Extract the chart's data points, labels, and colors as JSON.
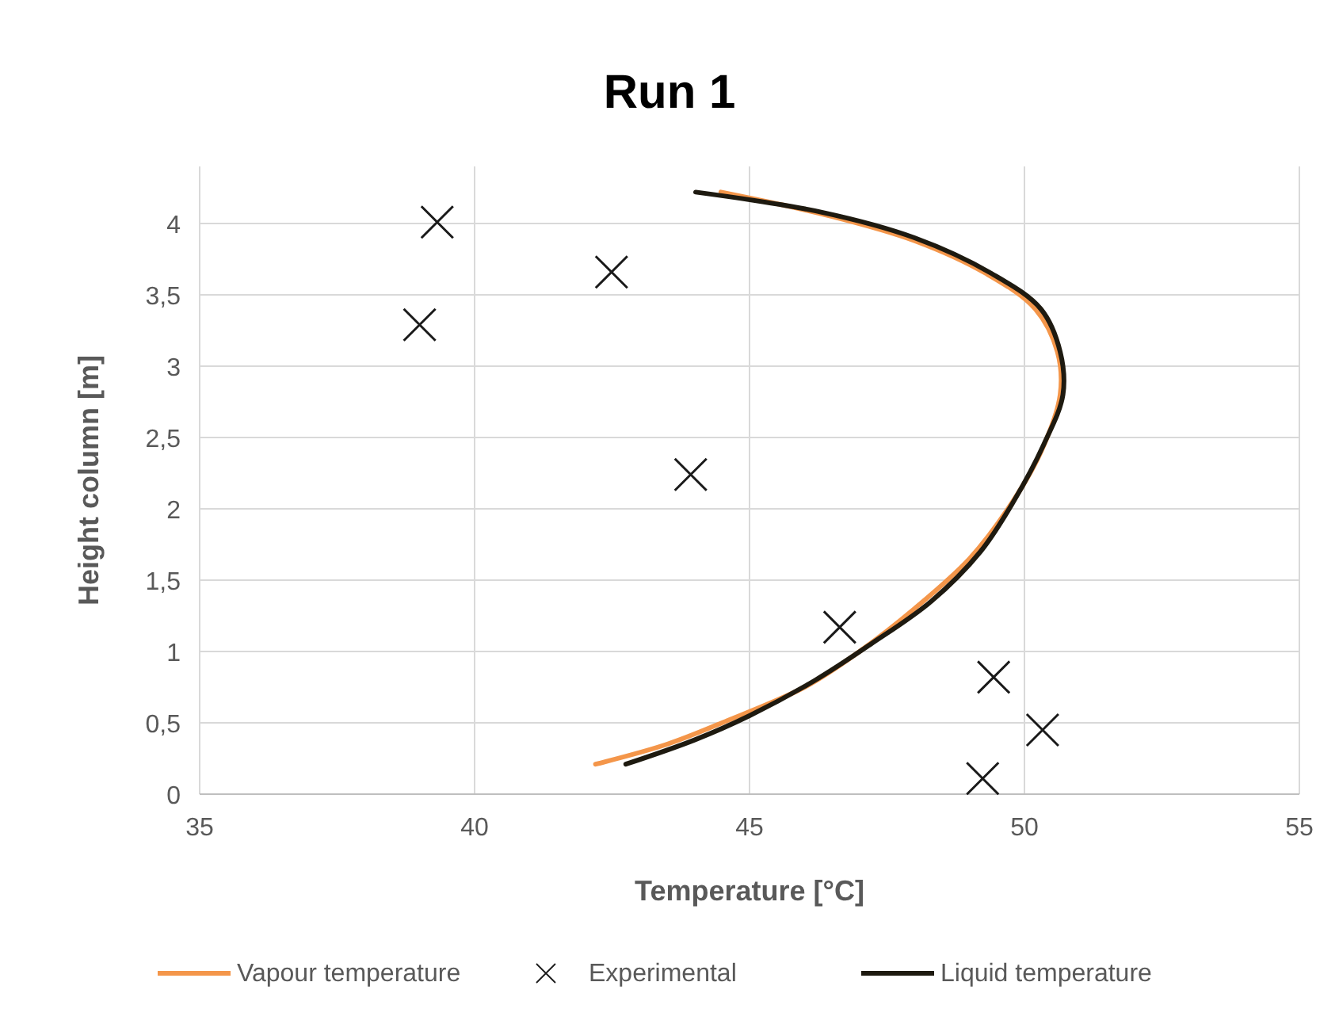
{
  "chart_data": {
    "type": "line",
    "title": "Run 1",
    "xlabel": "Temperature [°C]",
    "ylabel": "Height column [m]",
    "xlim": [
      35,
      55
    ],
    "xticks": [
      35,
      40,
      45,
      50,
      55
    ],
    "ylim": [
      0,
      4.4
    ],
    "yticks": [
      0,
      {
        "value": 0.5,
        "label": "0,5"
      },
      1,
      {
        "value": 1.5,
        "label": "1,5"
      },
      2,
      {
        "value": 2.5,
        "label": "2,5"
      },
      3,
      {
        "value": 3.5,
        "label": "3,5"
      },
      4
    ],
    "grid": true,
    "legend": "bottom",
    "series": [
      {
        "name": "Vapour temperature",
        "color": "#f4964a",
        "marker": "none",
        "x": [
          42.2,
          43.5,
          44.5,
          46,
          47,
          48,
          49,
          49.7,
          50.3,
          50.65,
          50.6,
          50.2,
          49.3,
          48,
          46.5,
          44.48
        ],
        "values": [
          0.21,
          0.35,
          0.5,
          0.75,
          1.0,
          1.3,
          1.65,
          2.0,
          2.4,
          2.8,
          3.1,
          3.4,
          3.65,
          3.88,
          4.05,
          4.22
        ]
      },
      {
        "name": "Experimental",
        "type": "scatter",
        "color": "#1a1a1a",
        "marker": "cross",
        "x": [
          39.32,
          42.49,
          39.0,
          43.93,
          46.64,
          49.44,
          50.33,
          49.24
        ],
        "values": [
          4.01,
          3.66,
          3.29,
          2.24,
          1.17,
          0.82,
          0.45,
          0.11
        ]
      },
      {
        "name": "Liquid temperature",
        "color": "#1e1a10",
        "marker": "none",
        "x": [
          42.75,
          44,
          45,
          46.2,
          47.2,
          48.3,
          49.2,
          49.8,
          50.35,
          50.7,
          50.65,
          50.3,
          49.4,
          48,
          46.3,
          44.02
        ],
        "values": [
          0.21,
          0.38,
          0.55,
          0.8,
          1.05,
          1.35,
          1.7,
          2.05,
          2.45,
          2.8,
          3.1,
          3.4,
          3.65,
          3.9,
          4.08,
          4.22
        ]
      }
    ]
  }
}
